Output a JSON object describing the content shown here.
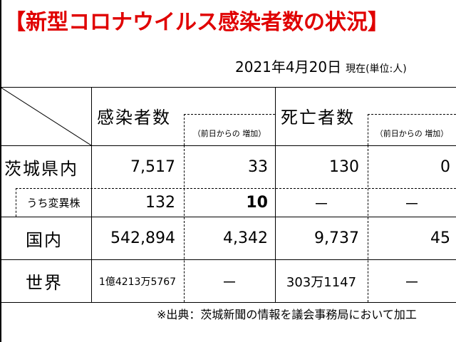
{
  "title": "【新型コロナウイルス感染者数の状況】",
  "date": "2021年4月20日",
  "unit_note": "現在(単位:人)",
  "headers": {
    "infected": "感染者数",
    "infected_change": "（前日からの 増加）",
    "deaths": "死亡者数",
    "deaths_change": "（前日からの 増加）"
  },
  "rows": [
    {
      "label": "茨城県内",
      "infected": "7,517",
      "infected_change": "33",
      "deaths": "130",
      "deaths_change": "0"
    },
    {
      "label": "うち変異株",
      "infected": "132",
      "infected_change": "10",
      "deaths": "－",
      "deaths_change": "－"
    },
    {
      "label": "国内",
      "infected": "542,894",
      "infected_change": "4,342",
      "deaths": "9,737",
      "deaths_change": "45"
    },
    {
      "label": "世界",
      "infected": "1億4213万5767",
      "infected_change": "－",
      "deaths": "303万1147",
      "deaths_change": "－"
    }
  ],
  "source": "※出典：茨城新聞の情報を議会事務局において加工",
  "colors": {
    "title": "#e00000"
  }
}
